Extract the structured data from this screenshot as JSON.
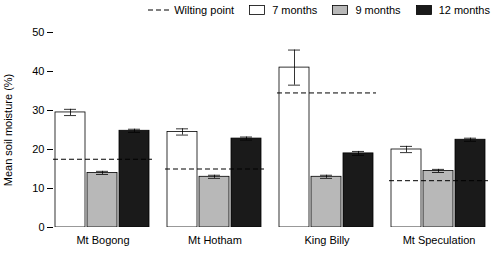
{
  "chart_data": {
    "type": "bar",
    "ylabel": "Mean soil moisture (%)",
    "categories": [
      "Mt Bogong",
      "Mt Hotham",
      "King Billy",
      "Mt Speculation"
    ],
    "series": [
      {
        "name": "Wilting point",
        "type": "hline",
        "line_style": "dashed",
        "color": "#000000",
        "values": [
          17.5,
          15.0,
          34.5,
          12.0
        ]
      },
      {
        "name": "7 months",
        "color": "#ffffff",
        "values": [
          29.5,
          24.5,
          41.0,
          20.0
        ],
        "errors": [
          0.8,
          0.8,
          4.5,
          0.8
        ]
      },
      {
        "name": "9 months",
        "color": "#b8b8b8",
        "values": [
          14.0,
          13.0,
          13.0,
          14.5
        ],
        "errors": [
          0.4,
          0.4,
          0.4,
          0.4
        ]
      },
      {
        "name": "12 months",
        "color": "#1a1a1a",
        "values": [
          24.8,
          22.8,
          19.0,
          22.5
        ],
        "errors": [
          0.4,
          0.4,
          0.5,
          0.4
        ]
      }
    ],
    "ylim": [
      0,
      50
    ],
    "yticks": [
      0,
      10,
      20,
      30,
      40,
      50
    ],
    "legend": "upper right",
    "grid": false
  }
}
